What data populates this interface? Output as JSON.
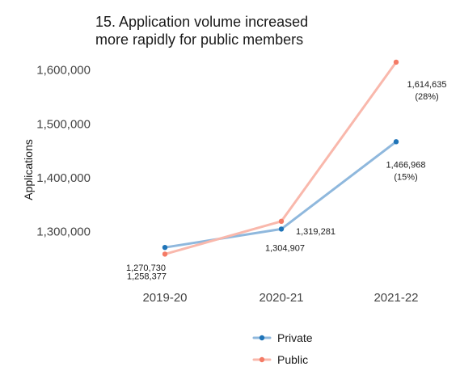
{
  "chart_data": {
    "type": "line",
    "title_lines": [
      "15. Application volume increased",
      "more rapidly for public members"
    ],
    "xlabel": "",
    "ylabel": "Applications",
    "categories": [
      "2019-20",
      "2020-21",
      "2021-22"
    ],
    "ylim": [
      1220000,
      1640000
    ],
    "yticks": [
      1300000,
      1400000,
      1500000,
      1600000
    ],
    "ytick_labels": [
      "1,300,000",
      "1,400,000",
      "1,500,000",
      "1,600,000"
    ],
    "grid": false,
    "legend_position": "bottom",
    "series": [
      {
        "name": "Private",
        "values": [
          1270730,
          1304907,
          1466968
        ],
        "labels": [
          "1,270,730",
          "1,304,907",
          "1,466,968"
        ],
        "pct_labels": [
          "",
          "",
          "(15%)"
        ],
        "line_color": "#8fb8dd",
        "marker_color": "#1f74b8"
      },
      {
        "name": "Public",
        "values": [
          1258377,
          1319281,
          1614635
        ],
        "labels": [
          "1,258,377",
          "1,319,281",
          "1,614,635"
        ],
        "pct_labels": [
          "",
          "",
          "(28%)"
        ],
        "line_color": "#f9b8ac",
        "marker_color": "#f47b66"
      }
    ]
  }
}
